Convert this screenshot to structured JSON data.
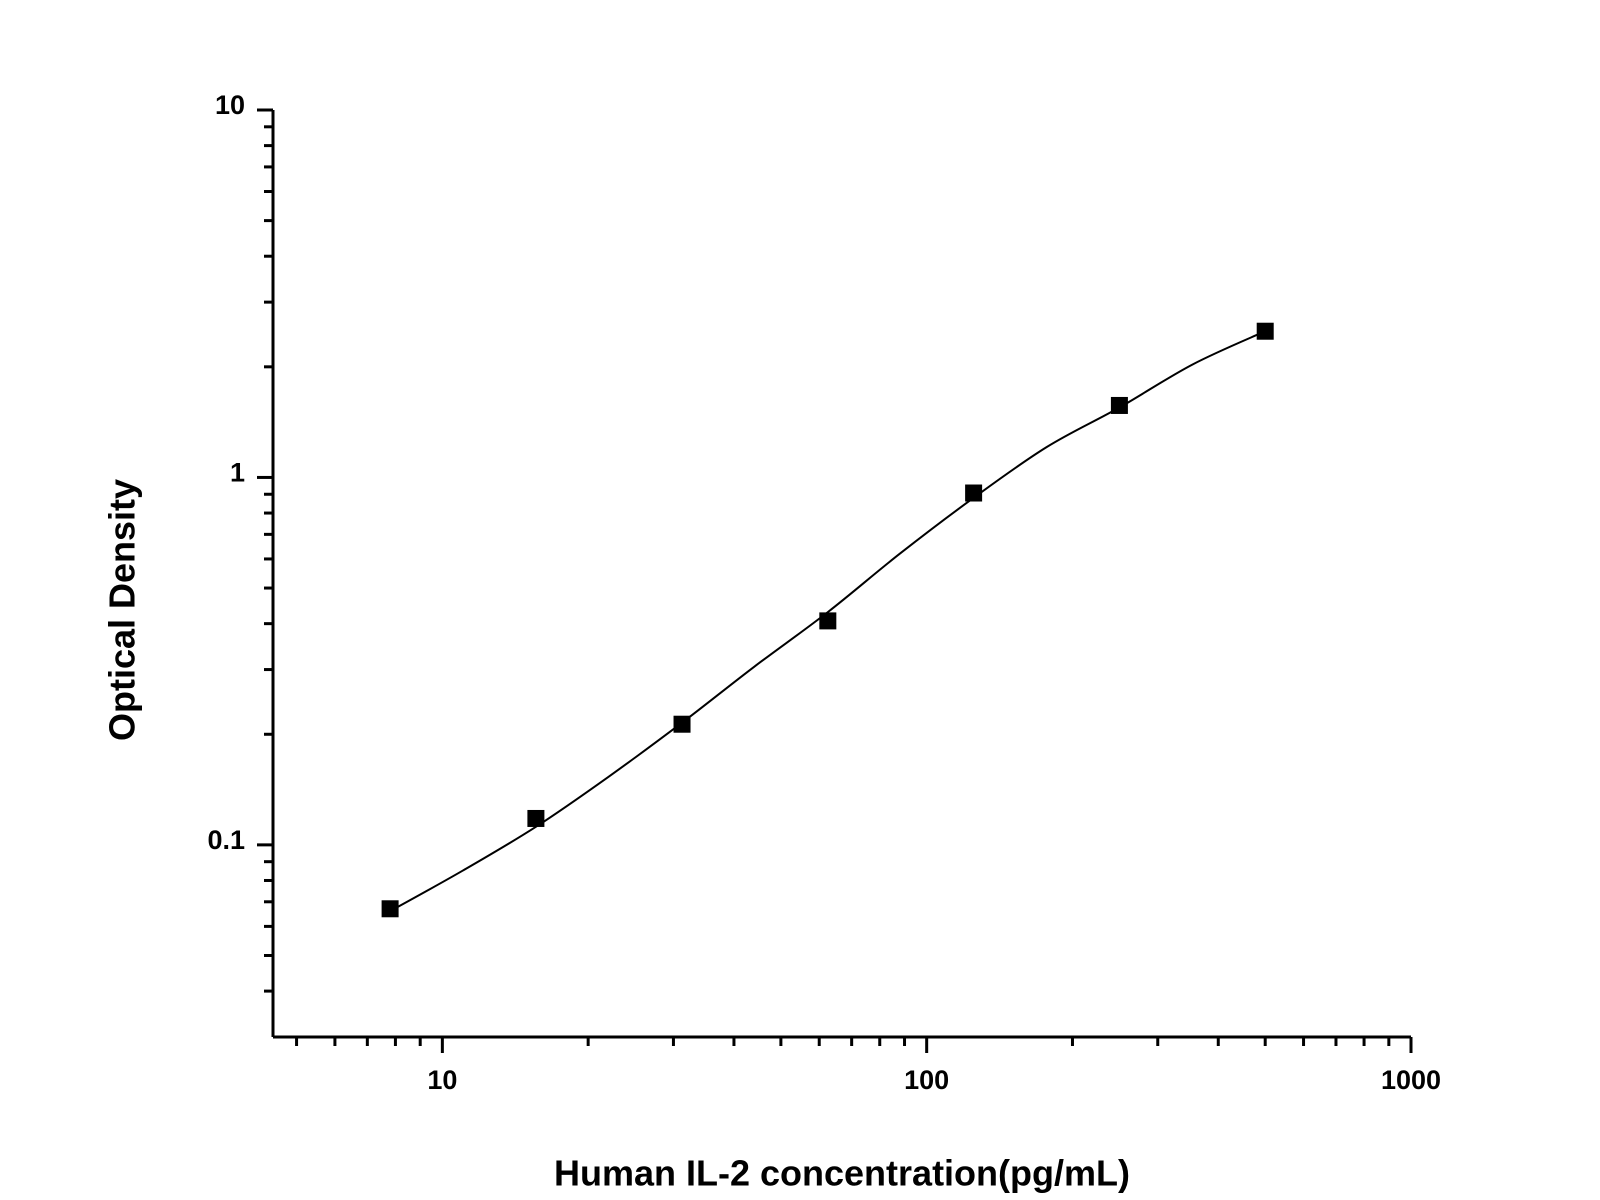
{
  "chart_data": {
    "type": "scatter",
    "xlabel": "Human IL-2 concentration(pg/mL)",
    "ylabel": "Optical Density",
    "xscale": "log",
    "yscale": "log",
    "xlim": [
      4.47,
      1000
    ],
    "ylim": [
      0.03,
      10
    ],
    "xticks": [
      10,
      100,
      1000
    ],
    "xminorticks": [
      5,
      6,
      7,
      8,
      9,
      20,
      30,
      40,
      50,
      60,
      70,
      80,
      90,
      200,
      300,
      400,
      500,
      600,
      700,
      800,
      900
    ],
    "yticks": [
      0.1,
      1,
      10
    ],
    "yminorticks": [
      0.04,
      0.05,
      0.06,
      0.07,
      0.08,
      0.09,
      0.2,
      0.3,
      0.4,
      0.5,
      0.6,
      0.7,
      0.8,
      0.9,
      2,
      3,
      4,
      5,
      6,
      7,
      8,
      9
    ],
    "grid": false,
    "series": [
      {
        "color": "#000000",
        "marker": "square",
        "x": [
          7.8,
          15.6,
          31.25,
          62.5,
          125,
          250,
          500
        ],
        "values": [
          0.067,
          0.118,
          0.213,
          0.407,
          0.907,
          1.57,
          2.5
        ]
      }
    ],
    "fit_curve": {
      "color": "#000000",
      "x": [
        7.8,
        11,
        15.6,
        22,
        31.25,
        44,
        62.5,
        88,
        125,
        177,
        250,
        354,
        500
      ],
      "values": [
        0.066,
        0.085,
        0.112,
        0.153,
        0.215,
        0.305,
        0.43,
        0.62,
        0.88,
        1.21,
        1.55,
        2.03,
        2.5
      ]
    }
  }
}
